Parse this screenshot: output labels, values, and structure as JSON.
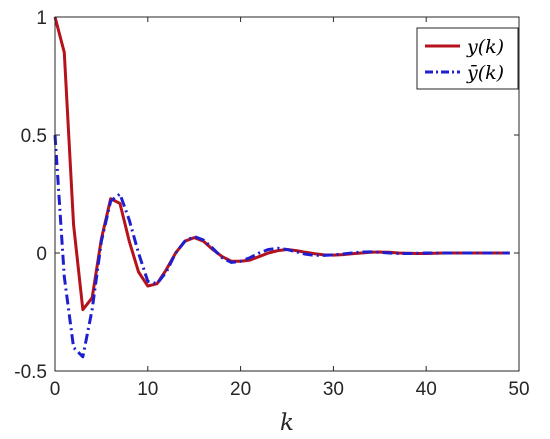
{
  "chart_data": {
    "type": "line",
    "title": "",
    "xlabel": "k",
    "ylabel": "",
    "xlim": [
      0,
      50
    ],
    "ylim": [
      -0.5,
      1
    ],
    "xticks": [
      0,
      10,
      20,
      30,
      40,
      50
    ],
    "yticks": [
      -0.5,
      0,
      0.5,
      1
    ],
    "xtick_labels": [
      "0",
      "10",
      "20",
      "30",
      "40",
      "50"
    ],
    "ytick_labels": [
      "-0.5",
      "0",
      "0.5",
      "1"
    ],
    "grid": false,
    "legend_position": "top-right",
    "series": [
      {
        "name": "y(k)",
        "color": "#b5121b",
        "line_style": "solid",
        "x": [
          0,
          1,
          2,
          3,
          4,
          5,
          6,
          7,
          8,
          9,
          10,
          11,
          12,
          13,
          14,
          15,
          16,
          17,
          18,
          19,
          20,
          21,
          22,
          23,
          24,
          25,
          26,
          27,
          28,
          29,
          30,
          31,
          32,
          33,
          34,
          35,
          36,
          37,
          38,
          39,
          40,
          41,
          42,
          43,
          44,
          45,
          46,
          47,
          48,
          49
        ],
        "y": [
          1.0,
          0.85,
          0.12,
          -0.24,
          -0.19,
          0.06,
          0.23,
          0.21,
          0.05,
          -0.08,
          -0.14,
          -0.13,
          -0.07,
          0.0,
          0.05,
          0.065,
          0.05,
          0.015,
          -0.015,
          -0.035,
          -0.035,
          -0.03,
          -0.015,
          0.0,
          0.01,
          0.015,
          0.01,
          0.003,
          -0.003,
          -0.008,
          -0.009,
          -0.007,
          -0.003,
          0.0,
          0.003,
          0.004,
          0.003,
          0.0,
          -0.001,
          -0.002,
          -0.002,
          -0.001,
          0.0,
          0.0,
          0.0,
          0.0,
          0.0,
          0.0,
          0.0,
          0.0
        ]
      },
      {
        "name": "ȳ(k)",
        "color": "#1f1fd0",
        "line_style": "dash-dot",
        "x": [
          0,
          1,
          2,
          3,
          4,
          5,
          6,
          7,
          8,
          9,
          10,
          11,
          12,
          13,
          14,
          15,
          16,
          17,
          18,
          19,
          20,
          21,
          22,
          23,
          24,
          25,
          26,
          27,
          28,
          29,
          30,
          31,
          32,
          33,
          34,
          35,
          36,
          37,
          38,
          39,
          40,
          41,
          42,
          43,
          44,
          45,
          46,
          47,
          48,
          49
        ],
        "y": [
          0.5,
          -0.1,
          -0.4,
          -0.44,
          -0.24,
          0.05,
          0.22,
          0.25,
          0.14,
          0.0,
          -0.12,
          -0.13,
          -0.08,
          0.0,
          0.05,
          0.07,
          0.055,
          0.02,
          -0.02,
          -0.04,
          -0.035,
          -0.02,
          0.0,
          0.015,
          0.02,
          0.015,
          0.005,
          -0.005,
          -0.01,
          -0.01,
          -0.008,
          -0.004,
          0.0,
          0.004,
          0.005,
          0.003,
          0.0,
          -0.002,
          -0.002,
          -0.001,
          0.0,
          0.0,
          0.0,
          0.0,
          0.0,
          0.0,
          0.0,
          0.0,
          0.0,
          0.0
        ]
      }
    ]
  }
}
